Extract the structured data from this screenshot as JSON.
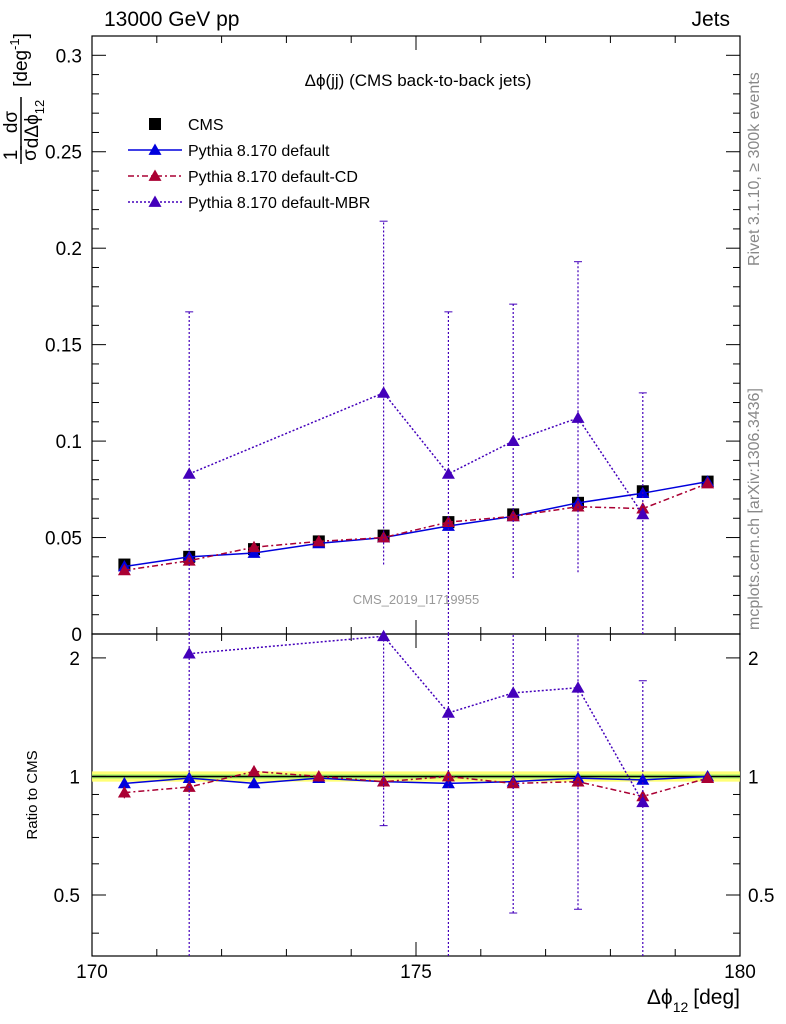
{
  "header": {
    "left": "13000 GeV pp",
    "right": "Jets"
  },
  "side": {
    "rivet": "Rivet 3.1.10, ≥ 300k events",
    "mcplots": "mcplots.cern.ch [arXiv:1306.3436]"
  },
  "chart_data": {
    "type": "line",
    "title": "Δϕ(jj) (CMS back-to-back jets)",
    "watermark": "CMS_2019_I1719955",
    "xlabel": "Δϕ",
    "xlabel_sub": "12",
    "xlabel_unit": "[deg]",
    "ylabel_frac_num": "1",
    "ylabel_frac_den": "σ",
    "ylabel_frac2_num": "dσ",
    "ylabel_frac2_den": "dΔϕ",
    "ylabel_frac2_sub": "12",
    "ylabel_unit": "[deg",
    "ylabel_unit_sup": "-1",
    "ylabel_unit_close": "]",
    "ratio_ylabel": "Ratio to CMS",
    "xlim": [
      170,
      180
    ],
    "ylim": [
      0,
      0.31
    ],
    "ratio_ylim": [
      0.35,
      2.3
    ],
    "x_ticks": [
      170,
      175,
      180
    ],
    "x_tick_labels": [
      "170",
      "175",
      "180"
    ],
    "y_ticks": [
      0,
      0.05,
      0.1,
      0.15,
      0.2,
      0.25,
      0.3
    ],
    "y_tick_labels": [
      "0",
      "0.05",
      "0.1",
      "0.15",
      "0.2",
      "0.25",
      "0.3"
    ],
    "ratio_ticks": [
      0.5,
      1,
      2
    ],
    "ratio_tick_labels": [
      "0.5",
      "1",
      "2"
    ],
    "legend_position": "top-left",
    "series": [
      {
        "name": "CMS",
        "style": "data",
        "color": "#000000",
        "x": [
          170.5,
          171.5,
          172.5,
          173.5,
          174.5,
          175.5,
          176.5,
          177.5,
          178.5,
          179.5
        ],
        "y": [
          0.036,
          0.04,
          0.044,
          0.048,
          0.051,
          0.058,
          0.062,
          0.068,
          0.074,
          0.079
        ],
        "ratio": [
          1,
          1,
          1,
          1,
          1,
          1,
          1,
          1,
          1,
          1
        ]
      },
      {
        "name": "Pythia 8.170 default",
        "style": "solid",
        "color": "#0000dd",
        "x": [
          170.5,
          171.5,
          172.5,
          173.5,
          174.5,
          175.5,
          176.5,
          177.5,
          178.5,
          179.5
        ],
        "y": [
          0.035,
          0.04,
          0.042,
          0.047,
          0.05,
          0.056,
          0.061,
          0.068,
          0.073,
          0.079
        ],
        "ratio": [
          0.96,
          0.99,
          0.96,
          0.99,
          0.97,
          0.96,
          0.97,
          0.99,
          0.98,
          1.0
        ],
        "ratio_err": [
          0.02,
          0.03,
          0.02,
          0.02,
          0.02,
          0.02,
          0.02,
          0.02,
          0.02,
          0.02
        ]
      },
      {
        "name": "Pythia 8.170 default-CD",
        "style": "dashdot",
        "color": "#aa0033",
        "x": [
          170.5,
          171.5,
          172.5,
          173.5,
          174.5,
          175.5,
          176.5,
          177.5,
          178.5,
          179.5
        ],
        "y": [
          0.033,
          0.038,
          0.045,
          0.048,
          0.05,
          0.058,
          0.061,
          0.066,
          0.065,
          0.078
        ],
        "ratio": [
          0.91,
          0.94,
          1.03,
          1.0,
          0.97,
          1.0,
          0.96,
          0.97,
          0.89,
          0.99
        ],
        "ratio_err": [
          0.03,
          0.03,
          0.03,
          0.03,
          0.03,
          0.03,
          0.03,
          0.03,
          0.03,
          0.02
        ]
      },
      {
        "name": "Pythia 8.170 default-MBR",
        "style": "dotted",
        "color": "#4400bb",
        "x": [
          171.5,
          174.5,
          175.5,
          176.5,
          177.5,
          178.5
        ],
        "y": [
          0.083,
          0.125,
          0.083,
          0.1,
          0.112,
          0.062
        ],
        "y_low": [
          0.0,
          0.036,
          0.0,
          0.029,
          0.032,
          0.0
        ],
        "y_high": [
          0.167,
          0.214,
          0.167,
          0.171,
          0.193,
          0.125
        ],
        "ratio": [
          2.05,
          2.27,
          1.45,
          1.63,
          1.68,
          0.86
        ],
        "ratio_low": [
          0.35,
          0.75,
          0.35,
          0.45,
          0.46,
          0.35
        ],
        "ratio_high": [
          2.3,
          2.3,
          2.3,
          2.3,
          2.3,
          1.75
        ]
      }
    ]
  }
}
